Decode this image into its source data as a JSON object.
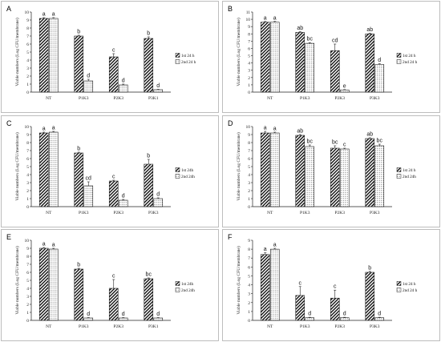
{
  "chart_data": [
    {
      "panel_letter": "A",
      "type": "bar",
      "categories": [
        "NT",
        "P1K3",
        "P2K3",
        "P3K1"
      ],
      "ylabel": "Viable numbers (Log CFU/membrane)",
      "ylim": [
        0,
        10
      ],
      "yticks": [
        "0",
        "1",
        "2",
        "3",
        "4",
        "5",
        "6",
        "7",
        "8",
        "9",
        "10"
      ],
      "legend_position": "right",
      "series": [
        {
          "name": "1st 24 h",
          "pattern": "diagonal",
          "values": [
            9.2,
            7.0,
            4.4,
            6.7
          ],
          "errors": [
            0.1,
            0.1,
            0.4,
            0.2
          ],
          "labels": [
            "a",
            "b",
            "c",
            "b"
          ]
        },
        {
          "name": "2nd 24 h",
          "pattern": "dots",
          "values": [
            9.2,
            1.4,
            0.9,
            0.3
          ],
          "errors": [
            0.1,
            0.2,
            0.1,
            0.05
          ],
          "labels": [
            "a",
            "d",
            "d",
            "d"
          ]
        }
      ]
    },
    {
      "panel_letter": "B",
      "type": "bar",
      "categories": [
        "NT",
        "P1K3",
        "P2K3",
        "P3K3"
      ],
      "ylabel": "Viable numbers (Log CFU/membrane)",
      "ylim": [
        0,
        11
      ],
      "yticks": [
        "0",
        "1",
        "2",
        "3",
        "4",
        "5",
        "6",
        "7",
        "8",
        "9",
        "10",
        "11"
      ],
      "legend_position": "right",
      "series": [
        {
          "name": "1st 24 h",
          "pattern": "diagonal",
          "values": [
            9.6,
            8.2,
            5.7,
            8.0
          ],
          "errors": [
            0.1,
            0.1,
            0.9,
            0.1
          ],
          "labels": [
            "a",
            "ab",
            "cd",
            "ab"
          ]
        },
        {
          "name": "2nd 24 h",
          "pattern": "dots",
          "values": [
            9.6,
            6.7,
            0.3,
            3.8
          ],
          "errors": [
            0.1,
            0.1,
            0.05,
            0.1
          ],
          "labels": [
            "a",
            "bc",
            "e",
            "d"
          ]
        }
      ]
    },
    {
      "panel_letter": "C",
      "type": "bar",
      "categories": [
        "NT",
        "P1K3",
        "P2K3",
        "P3K3"
      ],
      "ylabel": "Viable numbers (Log CFU/membrane)",
      "ylim": [
        0,
        10
      ],
      "yticks": [
        "0",
        "1",
        "2",
        "3",
        "4",
        "5",
        "6",
        "7",
        "8",
        "9",
        "10"
      ],
      "legend_position": "right",
      "series": [
        {
          "name": "1st 24h",
          "pattern": "diagonal",
          "values": [
            9.2,
            6.7,
            3.2,
            5.3
          ],
          "errors": [
            0.1,
            0.1,
            0.1,
            0.6
          ],
          "labels": [
            "a",
            "b",
            "c",
            "b"
          ]
        },
        {
          "name": "2nd 24h",
          "pattern": "dots",
          "values": [
            9.3,
            2.6,
            0.8,
            1.0
          ],
          "errors": [
            0.1,
            0.5,
            0.1,
            0.1
          ],
          "labels": [
            "a",
            "cd",
            "d",
            "d"
          ]
        }
      ]
    },
    {
      "panel_letter": "D",
      "type": "bar",
      "categories": [
        "NT",
        "P1K3",
        "P2K3",
        "P3K3"
      ],
      "ylabel": "Viable numbers (Log CFU/membrane)",
      "ylim": [
        0,
        10
      ],
      "yticks": [
        "0",
        "1",
        "2",
        "3",
        "4",
        "5",
        "6",
        "7",
        "8",
        "9",
        "10"
      ],
      "legend_position": "right",
      "series": [
        {
          "name": "1st 24 h",
          "pattern": "diagonal",
          "values": [
            9.2,
            8.9,
            7.3,
            8.5
          ],
          "errors": [
            0.2,
            0.1,
            0.3,
            0.1
          ],
          "labels": [
            "a",
            "ab",
            "bc",
            "ab"
          ]
        },
        {
          "name": "2nd 24h",
          "pattern": "dots",
          "values": [
            9.2,
            7.5,
            7.2,
            7.6
          ],
          "errors": [
            0.1,
            0.2,
            0.1,
            0.2
          ],
          "labels": [
            "a",
            "bc",
            "c",
            "bc"
          ]
        }
      ]
    },
    {
      "panel_letter": "E",
      "type": "bar",
      "categories": [
        "NT",
        "P1K3",
        "P2K3",
        "P3K1"
      ],
      "ylabel": "Viable numbers (Log CFU/membrane)",
      "ylim": [
        0,
        10
      ],
      "yticks": [
        "0",
        "1",
        "2",
        "3",
        "4",
        "5",
        "6",
        "7",
        "8",
        "9",
        "10"
      ],
      "legend_position": "right",
      "series": [
        {
          "name": "1st 24h",
          "pattern": "diagonal",
          "values": [
            9.0,
            6.4,
            4.0,
            5.2
          ],
          "errors": [
            0.1,
            0.1,
            1.1,
            0.1
          ],
          "labels": [
            "a",
            "b",
            "c",
            "bc"
          ]
        },
        {
          "name": "2nd 24h",
          "pattern": "dots",
          "values": [
            8.9,
            0.3,
            0.3,
            0.3
          ],
          "errors": [
            0.1,
            0.05,
            0.05,
            0.05
          ],
          "labels": [
            "a",
            "d",
            "d",
            "d"
          ]
        }
      ]
    },
    {
      "panel_letter": "F",
      "type": "bar",
      "categories": [
        "NT",
        "P1K3",
        "P2K3",
        "P3K3"
      ],
      "ylabel": "Viable numbers (Log CFU/membrane)",
      "ylim": [
        0,
        9
      ],
      "yticks": [
        "0",
        "1",
        "2",
        "3",
        "4",
        "5",
        "6",
        "7",
        "8",
        "9"
      ],
      "legend_position": "right",
      "series": [
        {
          "name": "1st 24 h",
          "pattern": "diagonal",
          "values": [
            7.4,
            2.8,
            2.5,
            5.4
          ],
          "errors": [
            0.2,
            1.0,
            0.9,
            0.1
          ],
          "labels": [
            "a",
            "c",
            "c",
            "b"
          ]
        },
        {
          "name": "2nd 24 h",
          "pattern": "dots",
          "values": [
            8.0,
            0.3,
            0.3,
            0.3
          ],
          "errors": [
            0.1,
            0.05,
            0.05,
            0.05
          ],
          "labels": [
            "a",
            "d",
            "d",
            "d"
          ]
        }
      ]
    }
  ]
}
